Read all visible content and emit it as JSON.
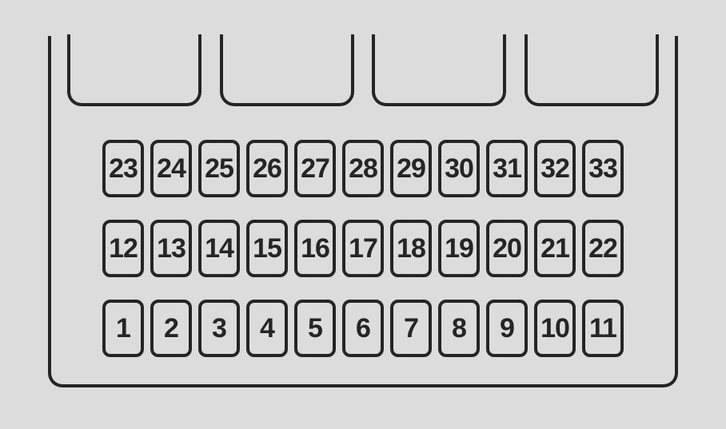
{
  "diagram": {
    "type": "fuse-box-layout",
    "background_color": "#dcdcdc",
    "stroke_color": "#252525",
    "stroke_width": 4,
    "cell_border_radius": 10,
    "panel_border_radius": 18,
    "font_family": "Arial",
    "font_weight": "bold",
    "cell_font_size": 34,
    "top_slots_count": 4,
    "rows": [
      {
        "cells": [
          "23",
          "24",
          "25",
          "26",
          "27",
          "28",
          "29",
          "30",
          "31",
          "32",
          "33"
        ]
      },
      {
        "cells": [
          "12",
          "13",
          "14",
          "15",
          "16",
          "17",
          "18",
          "19",
          "20",
          "21",
          "22"
        ]
      },
      {
        "cells": [
          "1",
          "2",
          "3",
          "4",
          "5",
          "6",
          "7",
          "8",
          "9",
          "10",
          "11"
        ]
      }
    ]
  }
}
